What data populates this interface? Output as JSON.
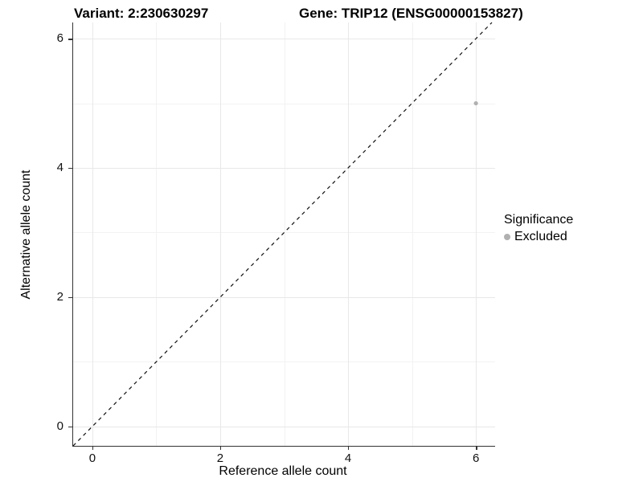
{
  "titles": {
    "variant": "Variant: 2:230630297",
    "gene": "Gene: TRIP12 (ENSG00000153827)"
  },
  "chart_data": {
    "type": "scatter",
    "title_left": "Variant: 2:230630297",
    "title_right": "Gene: TRIP12 (ENSG00000153827)",
    "xlabel": "Reference allele count",
    "ylabel": "Alternative allele count",
    "xlim": [
      -0.3,
      6.3
    ],
    "ylim": [
      -0.3,
      6.25
    ],
    "x_ticks": [
      0,
      2,
      4,
      6
    ],
    "y_ticks": [
      0,
      2,
      4,
      6
    ],
    "x_minor_ticks": [
      1,
      3,
      5
    ],
    "y_minor_ticks": [
      1,
      3,
      5
    ],
    "grid": true,
    "points": [
      {
        "x": 6,
        "y": 5,
        "series": "Excluded"
      }
    ],
    "identity_line": {
      "equation": "y = x",
      "style": "dashed"
    },
    "legend": {
      "title": "Significance",
      "position": "right",
      "entries": [
        {
          "label": "Excluded",
          "color": "#b0b0b0"
        }
      ]
    },
    "colors": {
      "point": "#b0b0b0",
      "grid_major": "#e8e8e8",
      "grid_minor": "#f2f2f2",
      "axis": "#333333",
      "dashed_line": "#111111"
    }
  }
}
